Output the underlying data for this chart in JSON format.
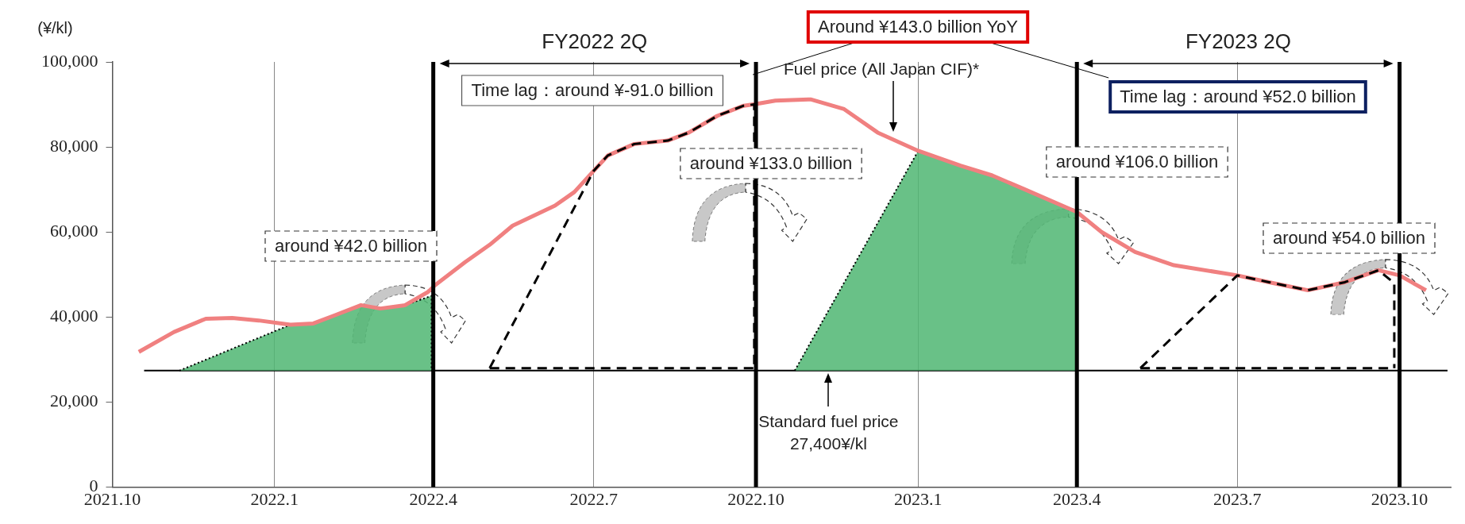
{
  "chart_data": {
    "type": "line",
    "ylabel": "(¥/kl)",
    "xlim": [
      "2021-10",
      "2023-10-30"
    ],
    "xticks": [
      {
        "value": "2021-10",
        "label": "2021.10"
      },
      {
        "value": "2022-01",
        "label": "2022.1"
      },
      {
        "value": "2022-04",
        "label": "2022.4"
      },
      {
        "value": "2022-07",
        "label": "2022.7"
      },
      {
        "value": "2022-10",
        "label": "2022.10"
      },
      {
        "value": "2023-01",
        "label": "2023.1"
      },
      {
        "value": "2023-04",
        "label": "2023.4"
      },
      {
        "value": "2023-07",
        "label": "2023.7"
      },
      {
        "value": "2023-10",
        "label": "2023.10"
      }
    ],
    "ylim": [
      0,
      100000
    ],
    "yticks": [
      {
        "value": 0,
        "label": "0"
      },
      {
        "value": 20000,
        "label": "20,000"
      },
      {
        "value": 40000,
        "label": "40,000"
      },
      {
        "value": 60000,
        "label": "60,000"
      },
      {
        "value": 80000,
        "label": "80,000"
      },
      {
        "value": 100000,
        "label": "100,000"
      }
    ],
    "grid": "x",
    "marker": "none",
    "series": [
      {
        "color": "#f08080",
        "line_style": "solid",
        "x": [
          "2021-10-16",
          "2021-11-05",
          "2021-11-23",
          "2021-12-08",
          "2021-12-23",
          "2022-01-10",
          "2022-01-23",
          "2022-02-04",
          "2022-02-19",
          "2022-03-02",
          "2022-03-16",
          "2022-03-29",
          "2022-04-02",
          "2022-04-19",
          "2022-05-03",
          "2022-05-16",
          "2022-06-09",
          "2022-06-20",
          "2022-07-01",
          "2022-07-09",
          "2022-07-24",
          "2022-08-12",
          "2022-08-24",
          "2022-09-09",
          "2022-09-24",
          "2022-10-01",
          "2022-10-12",
          "2022-11-01",
          "2022-11-20",
          "2022-12-09",
          "2023-01-01",
          "2023-01-25",
          "2023-02-12",
          "2023-03-02",
          "2023-04-01",
          "2023-04-15",
          "2023-05-04",
          "2023-05-26",
          "2023-07-01",
          "2023-07-19",
          "2023-08-10",
          "2023-08-31",
          "2023-09-19",
          "2023-10-01",
          "2023-10-16"
        ],
        "values": [
          31800,
          36500,
          39600,
          39800,
          39200,
          38200,
          38500,
          40400,
          42800,
          42000,
          42800,
          45900,
          47500,
          52900,
          57000,
          61500,
          66200,
          69400,
          74400,
          78000,
          80700,
          81500,
          83400,
          87300,
          89700,
          90100,
          90900,
          91200,
          88900,
          83400,
          79100,
          75600,
          73300,
          70100,
          64700,
          60000,
          55300,
          52200,
          49800,
          48200,
          46300,
          48200,
          51000,
          49800,
          46300
        ]
      },
      {
        "type": "area",
        "color": "#52b874",
        "line_style": "dotted",
        "x": [
          "2021-11-08",
          "2022-01-10",
          "2022-01-23",
          "2022-02-04",
          "2022-02-19",
          "2022-03-02",
          "2022-03-16",
          "2022-03-31",
          "2022-03-31"
        ],
        "values": [
          27400,
          38200,
          38500,
          40400,
          42800,
          42000,
          42800,
          45000,
          27400
        ]
      },
      {
        "type": "area",
        "color": "#52b874",
        "line_style": "dotted",
        "x": [
          "2022-10-23",
          "2023-01-01",
          "2023-01-25",
          "2023-02-12",
          "2023-03-02",
          "2023-04-01",
          "2023-04-01"
        ],
        "values": [
          27400,
          79100,
          75600,
          73300,
          70100,
          64700,
          27400
        ]
      },
      {
        "color": "#000000",
        "line_style": "dashed",
        "x": [
          "2022-05-03",
          "2022-07-01",
          "2022-07-09",
          "2022-07-24",
          "2022-08-12",
          "2022-08-24",
          "2022-09-09",
          "2022-09-24",
          "2022-09-30",
          "2022-09-30"
        ],
        "values": [
          28000,
          74400,
          78000,
          80700,
          81500,
          83400,
          87300,
          89700,
          90000,
          28000
        ]
      },
      {
        "color": "#000000",
        "line_style": "dashed",
        "x": [
          "2022-05-03",
          "2022-09-30"
        ],
        "values": [
          28000,
          28000
        ]
      },
      {
        "color": "#000000",
        "line_style": "dashed",
        "x": [
          "2023-05-07",
          "2023-07-01",
          "2023-07-19",
          "2023-08-10",
          "2023-08-31",
          "2023-09-19",
          "2023-09-28",
          "2023-09-28"
        ],
        "values": [
          28000,
          49800,
          48200,
          46300,
          48200,
          51000,
          48000,
          28000
        ]
      },
      {
        "color": "#000000",
        "line_style": "dashed",
        "x": [
          "2023-05-07",
          "2023-09-28"
        ],
        "values": [
          28000,
          28000
        ]
      }
    ],
    "ref_lines": [
      {
        "axis": "y",
        "value": 27400,
        "label": "Standard fuel price\n27,400¥/kl",
        "color": "#000000"
      },
      {
        "axis": "x",
        "value": "2022-04",
        "color": "#000000"
      },
      {
        "axis": "x",
        "value": "2022-10",
        "color": "#000000"
      },
      {
        "axis": "x",
        "value": "2023-04",
        "color": "#000000"
      },
      {
        "axis": "x",
        "value": "2023-10",
        "color": "#000000"
      }
    ],
    "annotations": [
      "FY2022 2Q",
      "FY2023 2Q",
      "Time lag：around ¥-91.0 billion",
      "Time lag：around ¥52.0 billion",
      {
        "text": "Around ¥143.0 billion YoY",
        "x": "2022-10-01",
        "y": 97000
      },
      "around ¥42.0 billion",
      "around ¥133.0 billion",
      "around ¥106.0 billion",
      "around ¥54.0 billion",
      "Fuel price (All Japan CIF)*"
    ]
  }
}
